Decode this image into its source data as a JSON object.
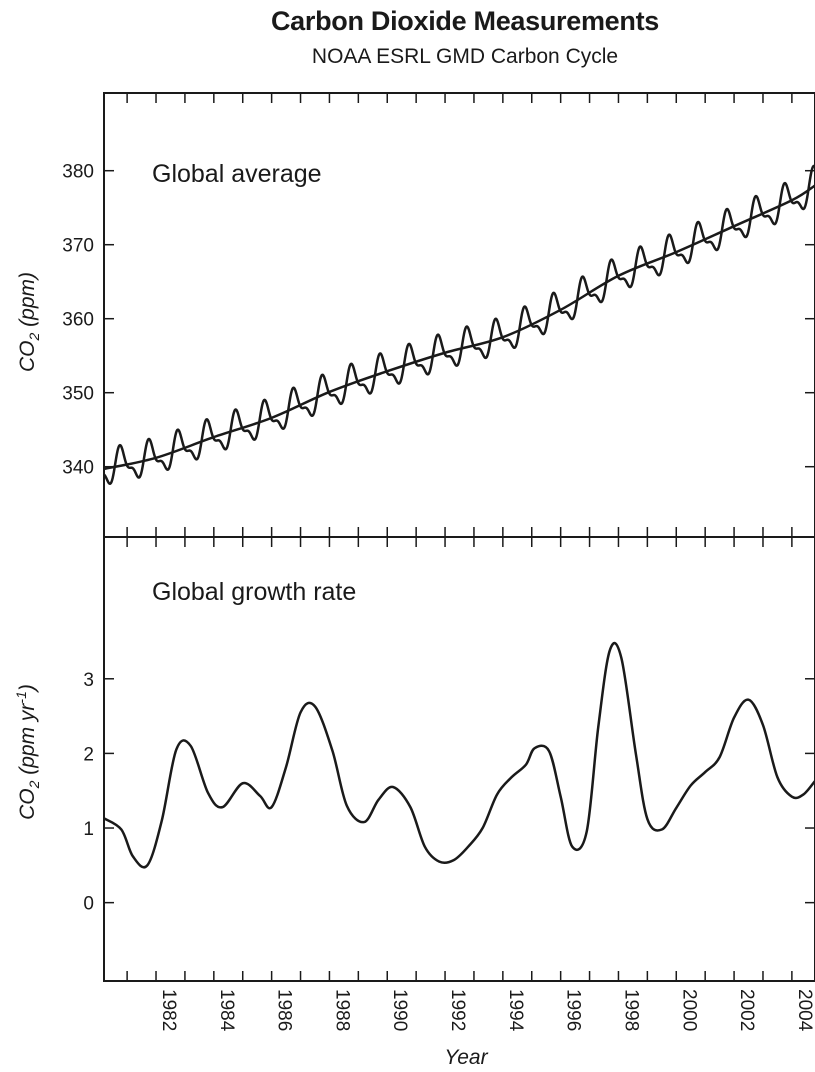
{
  "title": "Carbon Dioxide Measurements",
  "subtitle": "NOAA ESRL GMD Carbon Cycle",
  "chart_data": [
    {
      "type": "line",
      "panel_label": "Global average",
      "ylabel_main": "CO",
      "ylabel_sub": "2",
      "ylabel_rest": " (ppm)",
      "xlabel": "",
      "xlim": [
        1980.2,
        2004.8
      ],
      "ylim": [
        330.5,
        390.5
      ],
      "y_ticks": [
        340,
        350,
        360,
        370,
        380
      ],
      "y_tick_labels": [
        "340",
        "350",
        "360",
        "370",
        "380"
      ],
      "series": [
        {
          "kind": "trend",
          "x": [
            1980.2,
            1982,
            1984,
            1986,
            1988,
            1990,
            1992,
            1994,
            1996,
            1998,
            2000,
            2002,
            2004,
            2004.8
          ],
          "y": [
            339.7,
            341.2,
            344.0,
            346.6,
            350.1,
            352.9,
            355.4,
            357.5,
            361.2,
            365.8,
            369.0,
            372.5,
            376.0,
            378.0
          ]
        },
        {
          "kind": "seasonal",
          "amplitude": 2.0,
          "x": [
            1980.2,
            1982,
            1984,
            1986,
            1988,
            1990,
            1992,
            1994,
            1996,
            1998,
            2000,
            2002,
            2004,
            2004.8
          ],
          "y": [
            339.7,
            341.2,
            344.0,
            346.6,
            350.1,
            352.9,
            355.4,
            357.5,
            361.2,
            365.8,
            369.0,
            372.5,
            376.0,
            378.0
          ]
        }
      ]
    },
    {
      "type": "line",
      "panel_label": "Global growth rate",
      "ylabel_main": "CO",
      "ylabel_sub": "2",
      "ylabel_rest": " (ppm yr",
      "ylabel_sup": "-1",
      "ylabel_end": ")",
      "xlabel": "Year",
      "xlim": [
        1980.2,
        2004.8
      ],
      "ylim": [
        -1.05,
        4.9
      ],
      "y_ticks": [
        0,
        1,
        2,
        3
      ],
      "y_tick_labels": [
        "0",
        "1",
        "2",
        "3"
      ],
      "x_ticks": [
        1982,
        1984,
        1986,
        1988,
        1990,
        1992,
        1994,
        1996,
        1998,
        2000,
        2002,
        2004
      ],
      "x_tick_labels": [
        "1982",
        "1984",
        "1986",
        "1988",
        "1990",
        "1992",
        "1994",
        "1996",
        "1998",
        "2000",
        "2002",
        "2004"
      ],
      "series": [
        {
          "x": [
            1980.2,
            1980.8,
            1981.2,
            1981.7,
            1982.2,
            1982.7,
            1983.2,
            1983.8,
            1984.3,
            1985.0,
            1985.6,
            1986.0,
            1986.5,
            1987.0,
            1987.5,
            1988.1,
            1988.6,
            1989.2,
            1989.7,
            1990.2,
            1990.8,
            1991.3,
            1991.8,
            1992.3,
            1992.8,
            1993.3,
            1993.8,
            1994.3,
            1994.8,
            1995.1,
            1995.6,
            1996.0,
            1996.4,
            1996.9,
            1997.3,
            1997.7,
            1998.1,
            1998.6,
            1999.0,
            1999.5,
            2000.0,
            2000.5,
            2001.0,
            2001.5,
            2002.0,
            2002.5,
            2003.0,
            2003.5,
            2004.0,
            2004.4,
            2004.8
          ],
          "y": [
            1.13,
            0.98,
            0.62,
            0.5,
            1.1,
            2.05,
            2.1,
            1.47,
            1.28,
            1.6,
            1.43,
            1.28,
            1.82,
            2.55,
            2.63,
            2.04,
            1.3,
            1.08,
            1.38,
            1.55,
            1.28,
            0.75,
            0.55,
            0.57,
            0.75,
            1.0,
            1.45,
            1.68,
            1.85,
            2.07,
            2.03,
            1.42,
            0.75,
            0.95,
            2.35,
            3.38,
            3.28,
            2.0,
            1.12,
            0.98,
            1.27,
            1.57,
            1.75,
            1.95,
            2.48,
            2.72,
            2.38,
            1.68,
            1.42,
            1.45,
            1.63
          ]
        }
      ]
    }
  ]
}
